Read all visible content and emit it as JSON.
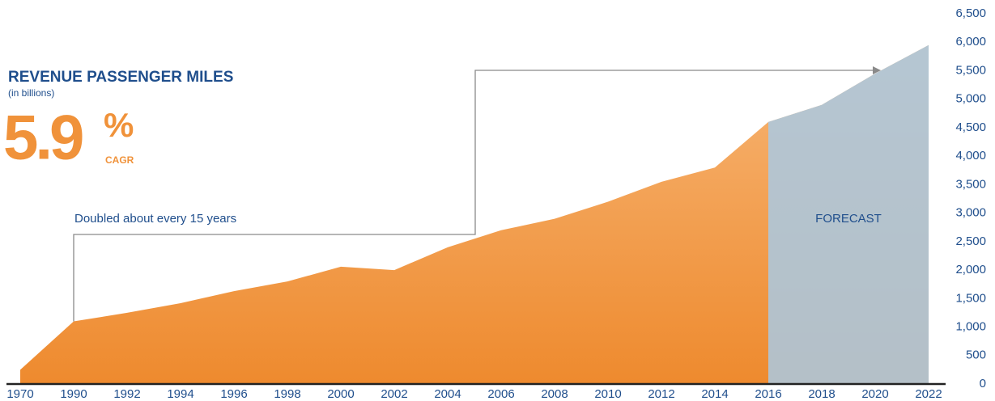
{
  "chart_data": {
    "type": "area",
    "title": "REVENUE PASSENGER MILES",
    "subtitle": "(in billions)",
    "headline": {
      "value": "5.9",
      "unit": "%",
      "caption": "CAGR"
    },
    "annotations": [
      "Doubled about every 15 years"
    ],
    "forecast": {
      "label": "FORECAST",
      "from": "2016",
      "color": "#a9c9e3"
    },
    "categories": [
      "1970",
      "1990",
      "1992",
      "1994",
      "1996",
      "1998",
      "2000",
      "2002",
      "2004",
      "2006",
      "2008",
      "2010",
      "2012",
      "2014",
      "2016",
      "2018",
      "2020",
      "2022"
    ],
    "values": [
      250,
      1100,
      1250,
      1420,
      1630,
      1800,
      2060,
      2000,
      2400,
      2700,
      2900,
      3200,
      3550,
      3800,
      4600,
      4900,
      5450,
      5950
    ],
    "color": "#f0923a",
    "ylim": [
      0,
      6500
    ],
    "yticks": [
      0,
      500,
      {
        "value": 1000,
        "label": "1,000"
      },
      {
        "value": 1500,
        "label": "1,500"
      },
      {
        "value": 2000,
        "label": "2,000"
      },
      {
        "value": 2500,
        "label": "2,500"
      },
      {
        "value": 3000,
        "label": "3,000"
      },
      {
        "value": 3500,
        "label": "3,500"
      },
      {
        "value": 4000,
        "label": "4,000"
      },
      {
        "value": 4500,
        "label": "4,500"
      },
      {
        "value": 5000,
        "label": "5,000"
      },
      {
        "value": 5500,
        "label": "5,500"
      },
      {
        "value": 6000,
        "label": "6,000"
      },
      {
        "value": 6500,
        "label": "6,500"
      }
    ],
    "grid": false
  }
}
